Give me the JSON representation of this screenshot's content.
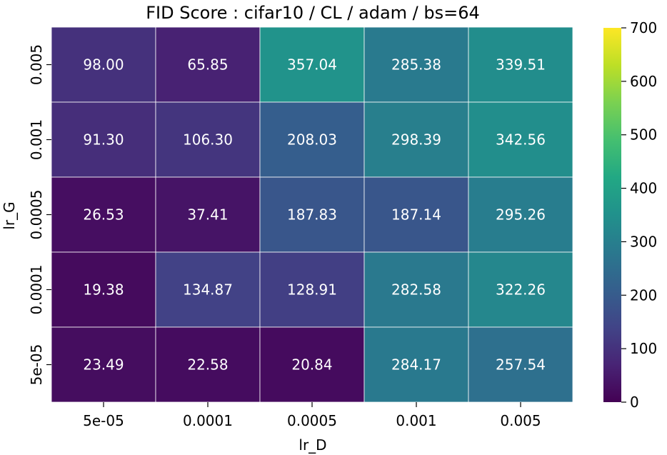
{
  "chart_data": {
    "type": "heatmap",
    "title": "FID Score : cifar10 / CL / adam / bs=64",
    "xlabel": "lr_D",
    "ylabel": "lr_G",
    "x_categories": [
      "5e-05",
      "0.0001",
      "0.0005",
      "0.001",
      "0.005"
    ],
    "y_categories": [
      "0.005",
      "0.001",
      "0.0005",
      "0.0001",
      "5e-05"
    ],
    "values": [
      [
        98.0,
        65.85,
        357.04,
        285.38,
        339.51
      ],
      [
        91.3,
        106.3,
        208.03,
        298.39,
        342.56
      ],
      [
        26.53,
        37.41,
        187.83,
        187.14,
        295.26
      ],
      [
        19.38,
        134.87,
        128.91,
        282.58,
        322.26
      ],
      [
        23.49,
        22.58,
        20.84,
        284.17,
        257.54
      ]
    ],
    "cell_labels": [
      [
        "98.00",
        "65.85",
        "357.04",
        "285.38",
        "339.51"
      ],
      [
        "91.30",
        "106.30",
        "208.03",
        "298.39",
        "342.56"
      ],
      [
        "26.53",
        "37.41",
        "187.83",
        "187.14",
        "295.26"
      ],
      [
        "19.38",
        "134.87",
        "128.91",
        "282.58",
        "322.26"
      ],
      [
        "23.49",
        "22.58",
        "20.84",
        "284.17",
        "257.54"
      ]
    ],
    "colorbar": {
      "colormap": "viridis",
      "range": [
        0,
        700
      ],
      "ticks": [
        0,
        100,
        200,
        300,
        400,
        500,
        600,
        700
      ]
    }
  }
}
